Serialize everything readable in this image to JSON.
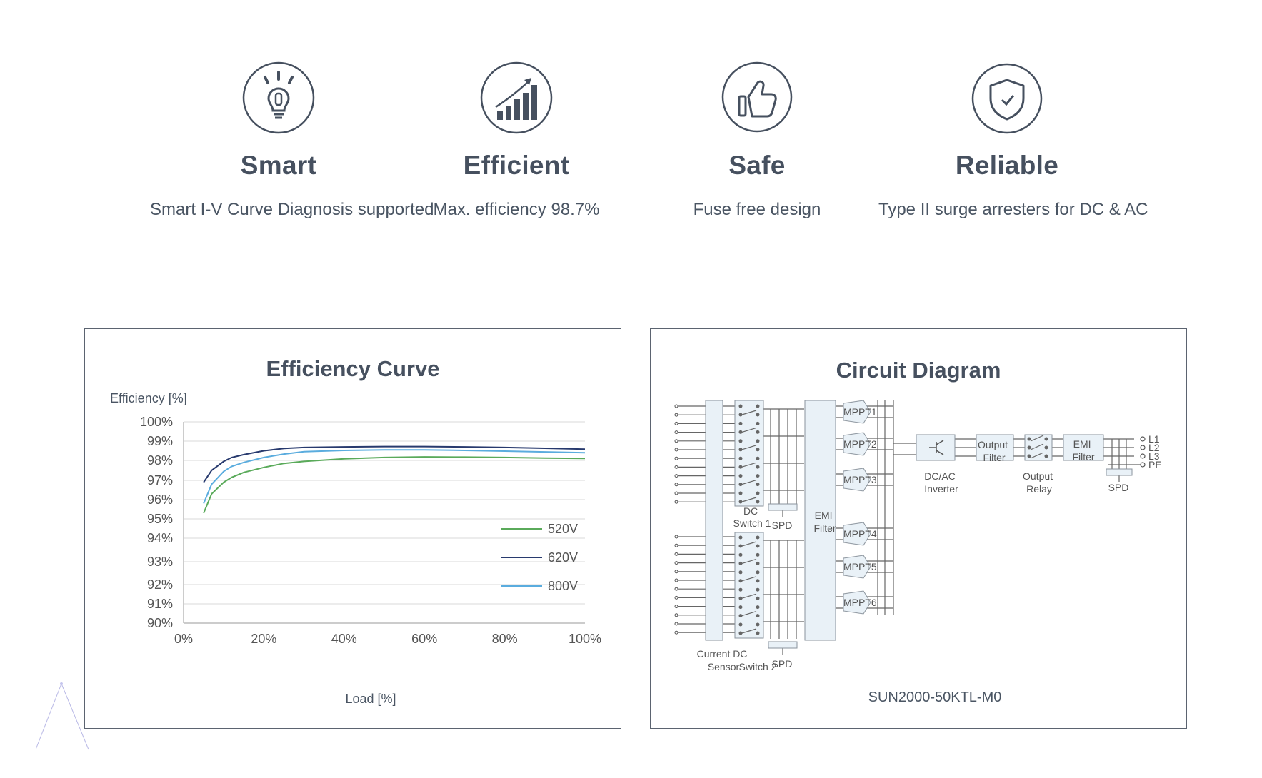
{
  "features": [
    {
      "icon": "lightbulb-icon",
      "title": "Smart",
      "desc": "Smart I-V Curve Diagnosis supported"
    },
    {
      "icon": "bar-chart-growth-icon",
      "title": "Efficient",
      "desc": "Max. efficiency 98.7%"
    },
    {
      "icon": "thumbs-up-icon",
      "title": "Safe",
      "desc": "Fuse free design"
    },
    {
      "icon": "shield-check-icon",
      "title": "Reliable",
      "desc": "Type II surge arresters for DC & AC"
    }
  ],
  "efficiency_panel": {
    "title": "Efficiency Curve"
  },
  "circuit_panel": {
    "title": "Circuit Diagram",
    "model": "SUN2000-50KTL-M0",
    "labels": {
      "dc_switch_1": [
        "DC",
        "Switch 1"
      ],
      "spd": "SPD",
      "emi_filter": [
        "EMI",
        "Filter"
      ],
      "current_sensor": [
        "Current DC",
        "Sensor"
      ],
      "switch_2": "Switch 2",
      "dcac": [
        "DC/AC",
        "Inverter"
      ],
      "output_filter": [
        "Output",
        "Filter"
      ],
      "output_relay": [
        "Output",
        "Relay"
      ],
      "emi_filter_ac": [
        "EMI",
        "Filter"
      ],
      "mppt": [
        "MPPT1",
        "MPPT2",
        "MPPT3",
        "MPPT4",
        "MPPT5",
        "MPPT6"
      ],
      "outputs": [
        "L1",
        "L2",
        "L3",
        "PE"
      ]
    }
  },
  "chart_data": {
    "type": "line",
    "title": "Efficiency Curve",
    "ylabel": "Efficiency [%]",
    "xlabel": "Load [%]",
    "xlim": [
      0,
      100
    ],
    "ylim": [
      90,
      100
    ],
    "x_ticks": [
      "0%",
      "20%",
      "40%",
      "60%",
      "80%",
      "100%"
    ],
    "y_ticks": [
      "100%",
      "99%",
      "98%",
      "97%",
      "96%",
      "95%",
      "94%",
      "93%",
      "92%",
      "91%",
      "90%"
    ],
    "series": [
      {
        "name": "520V",
        "color": "#5aaa5a",
        "x": [
          5,
          7,
          10,
          12,
          15,
          20,
          25,
          30,
          40,
          50,
          60,
          70,
          80,
          90,
          100
        ],
        "y": [
          95.3,
          96.3,
          96.9,
          97.15,
          97.4,
          97.65,
          97.85,
          97.95,
          98.08,
          98.15,
          98.18,
          98.17,
          98.15,
          98.12,
          98.1
        ]
      },
      {
        "name": "620V",
        "color": "#283a6e",
        "x": [
          5,
          7,
          10,
          12,
          15,
          20,
          25,
          30,
          40,
          50,
          60,
          70,
          80,
          90,
          100
        ],
        "y": [
          96.9,
          97.5,
          97.95,
          98.15,
          98.3,
          98.5,
          98.62,
          98.67,
          98.7,
          98.72,
          98.72,
          98.7,
          98.67,
          98.63,
          98.58
        ]
      },
      {
        "name": "800V",
        "color": "#5aacde",
        "x": [
          5,
          7,
          10,
          12,
          15,
          20,
          25,
          30,
          40,
          50,
          60,
          70,
          80,
          90,
          100
        ],
        "y": [
          95.8,
          96.8,
          97.45,
          97.7,
          97.9,
          98.15,
          98.33,
          98.45,
          98.52,
          98.55,
          98.55,
          98.52,
          98.48,
          98.44,
          98.4
        ]
      }
    ]
  }
}
